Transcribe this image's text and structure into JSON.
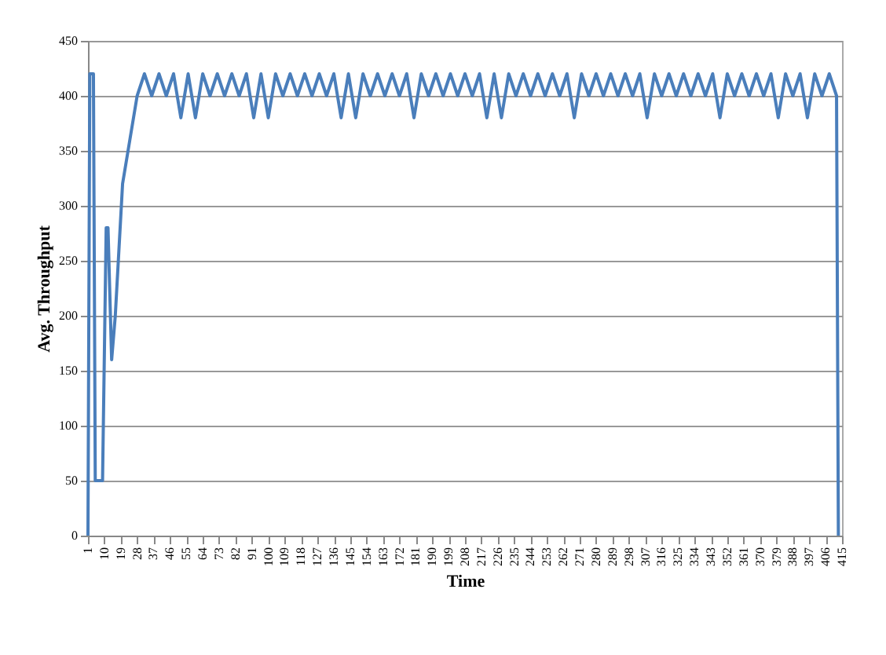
{
  "chart_data": {
    "type": "line",
    "xlabel": "Time",
    "ylabel": "Avg. Throughput",
    "xlim": [
      1,
      415
    ],
    "xticks": [
      1,
      10,
      19,
      28,
      37,
      46,
      55,
      64,
      73,
      82,
      91,
      100,
      109,
      118,
      127,
      136,
      145,
      154,
      163,
      172,
      181,
      190,
      199,
      208,
      217,
      226,
      235,
      244,
      253,
      262,
      271,
      280,
      289,
      298,
      307,
      316,
      325,
      334,
      343,
      352,
      361,
      370,
      379,
      388,
      397,
      406,
      415
    ],
    "ylim": [
      0,
      450
    ],
    "yticks": [
      0,
      50,
      100,
      150,
      200,
      250,
      300,
      350,
      400,
      450
    ],
    "grid": "y",
    "marker": "none",
    "line_style": "solid",
    "series": [
      {
        "color": "#4a7ebb",
        "x": [
          1,
          2,
          4,
          5,
          9,
          11,
          12,
          14,
          16,
          20,
          24,
          28,
          32,
          36,
          40,
          44,
          48,
          52,
          56,
          60,
          64,
          68,
          72,
          76,
          80,
          84,
          88,
          92,
          96,
          100,
          104,
          108,
          112,
          116,
          120,
          124,
          128,
          132,
          136,
          140,
          144,
          148,
          152,
          156,
          160,
          164,
          168,
          172,
          176,
          180,
          184,
          188,
          192,
          196,
          200,
          204,
          208,
          212,
          216,
          220,
          224,
          228,
          232,
          236,
          240,
          244,
          248,
          252,
          256,
          260,
          264,
          268,
          272,
          276,
          280,
          284,
          288,
          292,
          296,
          300,
          304,
          308,
          312,
          316,
          320,
          324,
          328,
          332,
          336,
          340,
          344,
          348,
          352,
          356,
          360,
          364,
          368,
          372,
          376,
          380,
          384,
          388,
          392,
          396,
          400,
          404,
          408,
          412,
          413
        ],
        "values": [
          0,
          420,
          420,
          50,
          50,
          280,
          280,
          160,
          200,
          320,
          360,
          400,
          420,
          400,
          420,
          400,
          420,
          380,
          420,
          380,
          420,
          400,
          420,
          400,
          420,
          400,
          420,
          380,
          420,
          380,
          420,
          400,
          420,
          400,
          420,
          400,
          420,
          400,
          420,
          380,
          420,
          380,
          420,
          400,
          420,
          400,
          420,
          400,
          420,
          380,
          420,
          400,
          420,
          400,
          420,
          400,
          420,
          400,
          420,
          380,
          420,
          380,
          420,
          400,
          420,
          400,
          420,
          400,
          420,
          400,
          420,
          380,
          420,
          400,
          420,
          400,
          420,
          400,
          420,
          400,
          420,
          380,
          420,
          400,
          420,
          400,
          420,
          400,
          420,
          400,
          420,
          380,
          420,
          400,
          420,
          400,
          420,
          400,
          420,
          380,
          420,
          400,
          420,
          380,
          420,
          400,
          420,
          400,
          0
        ]
      }
    ]
  }
}
